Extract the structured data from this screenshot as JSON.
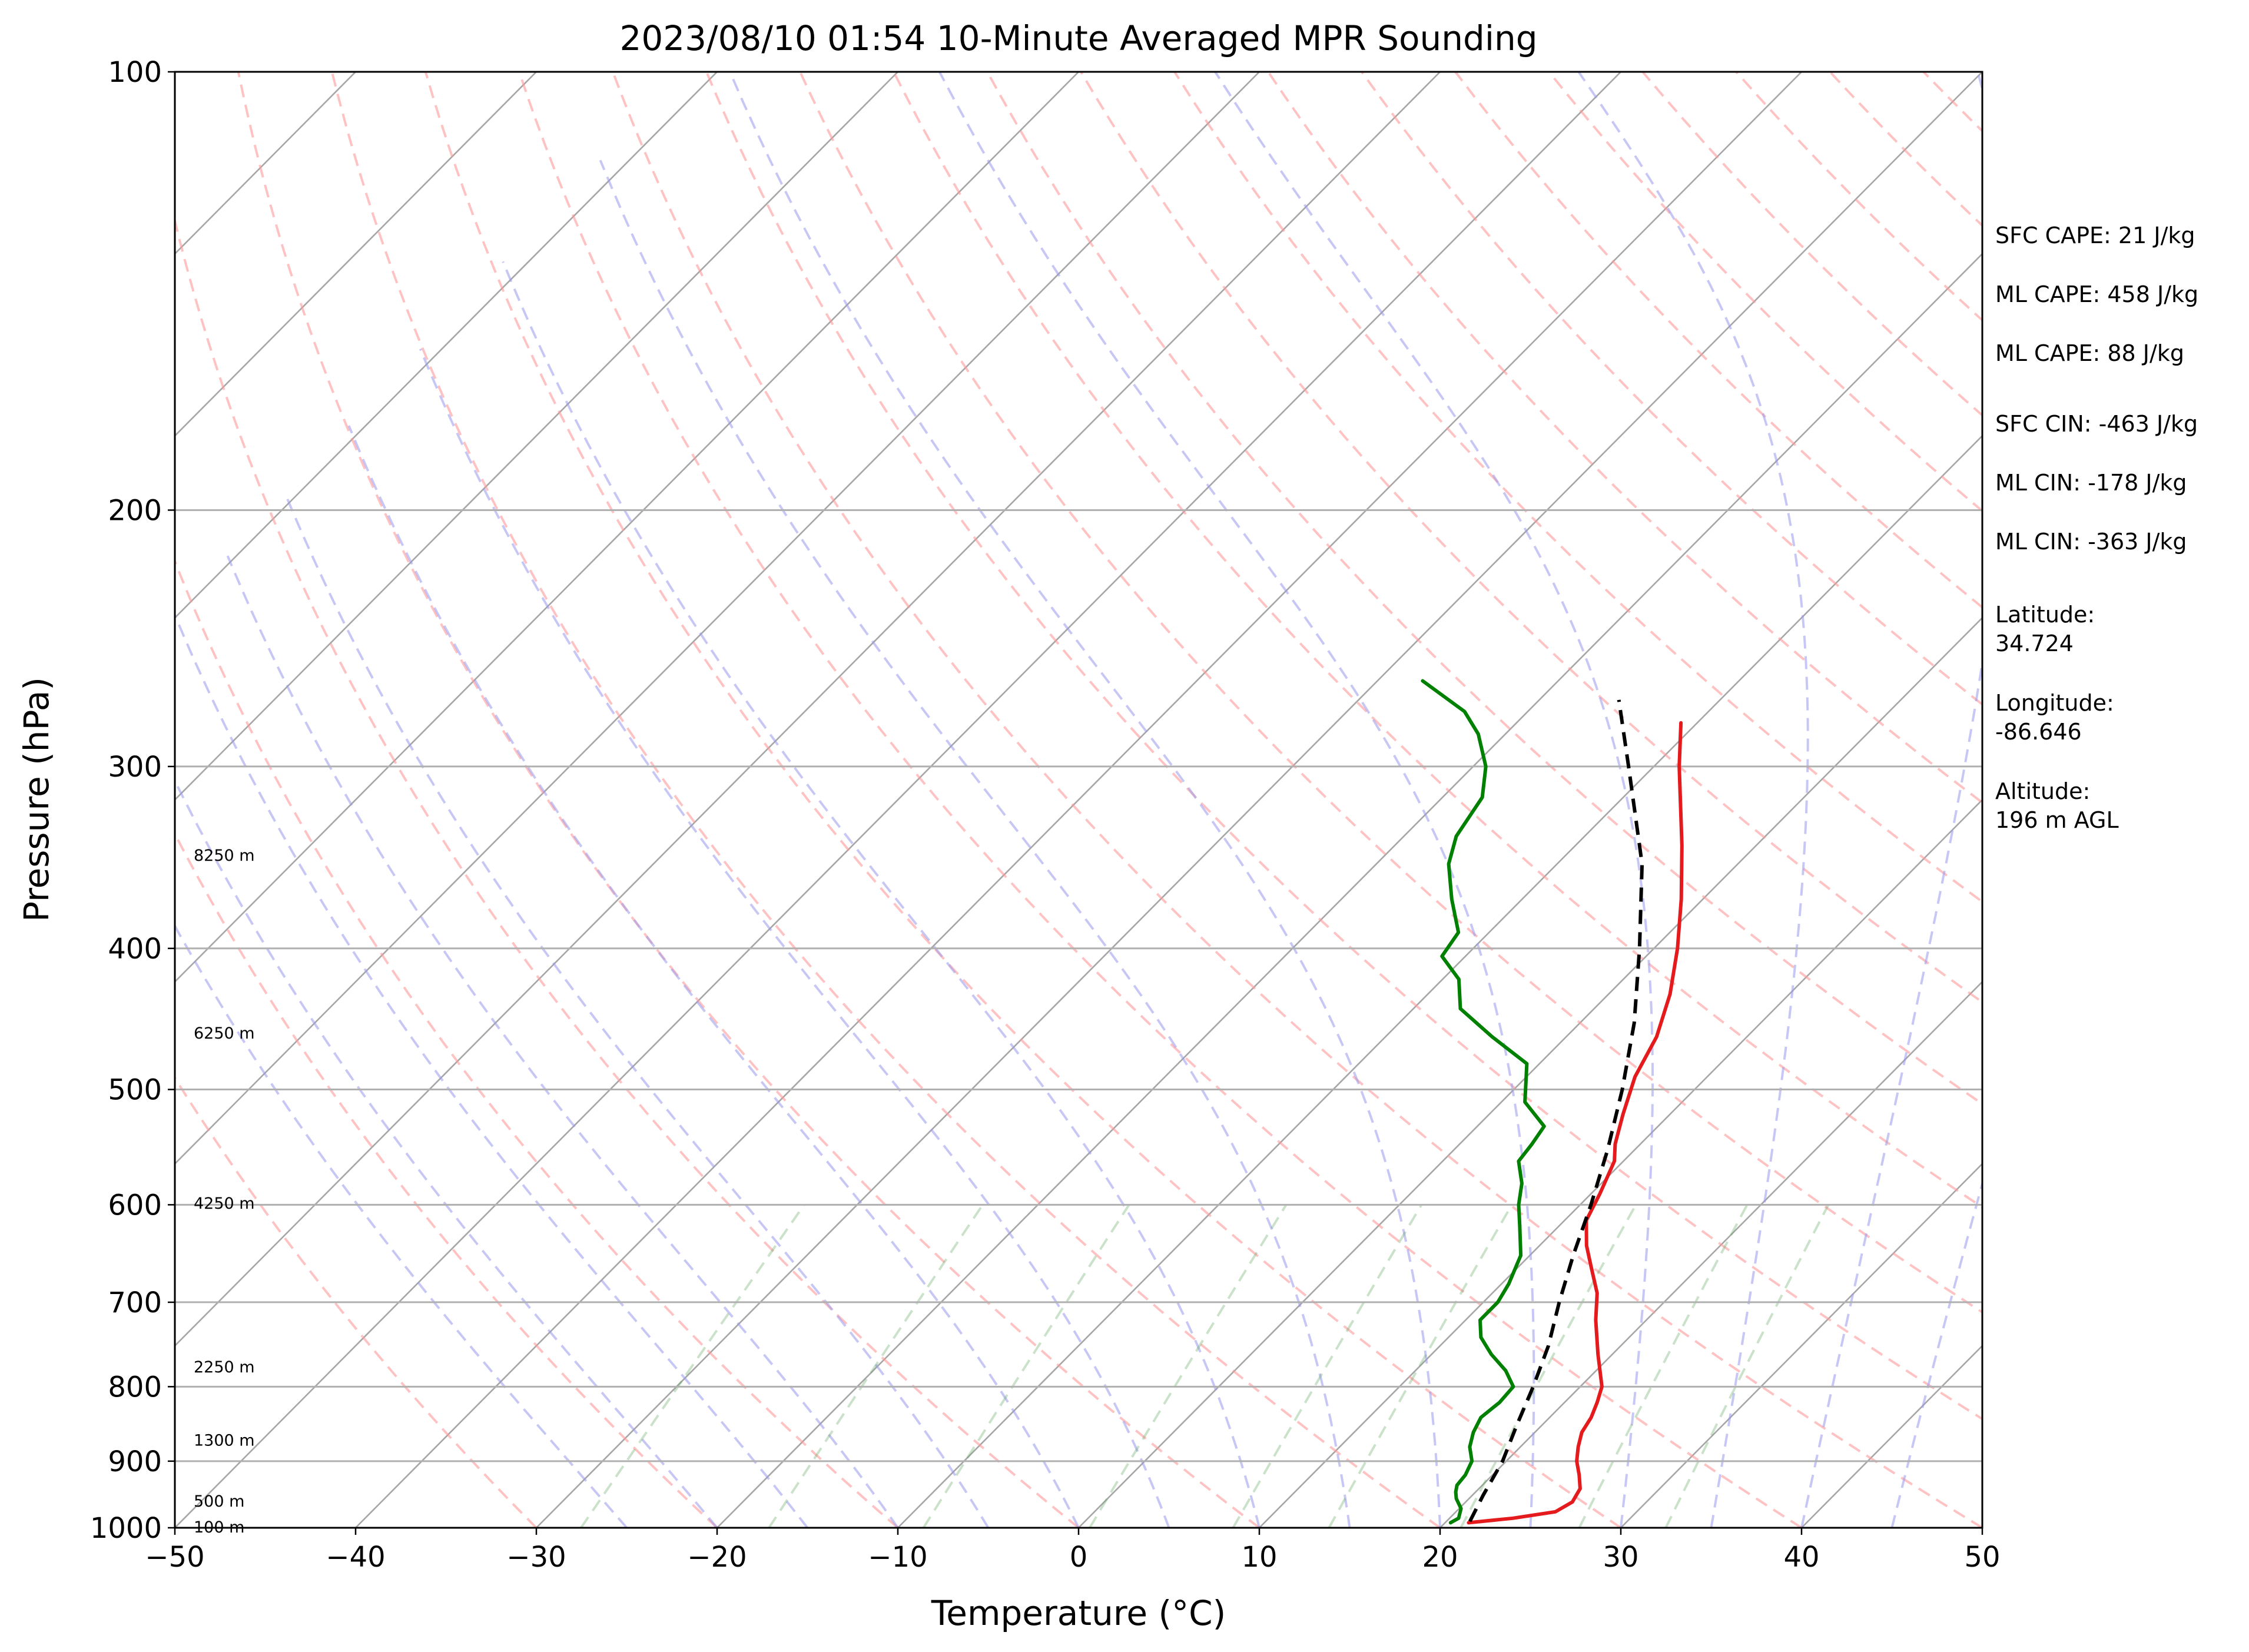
{
  "chart_data": {
    "type": "skew-t",
    "title": "2023/08/10 01:54 10-Minute Averaged MPR Sounding",
    "xlabel": "Temperature (°C)",
    "ylabel": "Pressure (hPa)",
    "xlim": [
      -50,
      50
    ],
    "ylim": [
      1000,
      100
    ],
    "y_scale": "log",
    "x_ticks": [
      "−50",
      "−40",
      "−30",
      "−20",
      "−10",
      "0",
      "10",
      "20",
      "30",
      "40",
      "50"
    ],
    "y_ticks": [
      {
        "p": 100,
        "label": "100"
      },
      {
        "p": 200,
        "label": "200"
      },
      {
        "p": 300,
        "label": "300"
      },
      {
        "p": 400,
        "label": "400"
      },
      {
        "p": 500,
        "label": "500"
      },
      {
        "p": 600,
        "label": "600"
      },
      {
        "p": 700,
        "label": "700"
      },
      {
        "p": 800,
        "label": "800"
      },
      {
        "p": 900,
        "label": "900"
      },
      {
        "p": 1000,
        "label": "1000"
      }
    ],
    "height_labels": [
      {
        "p": 345,
        "label": "8250 m"
      },
      {
        "p": 457,
        "label": "6250 m"
      },
      {
        "p": 598,
        "label": "4250 m"
      },
      {
        "p": 775,
        "label": "2250 m"
      },
      {
        "p": 870,
        "label": "1300 m"
      },
      {
        "p": 958,
        "label": "500 m"
      },
      {
        "p": 998,
        "label": "100 m"
      }
    ],
    "series": [
      {
        "color": "#e41a1c",
        "data": [
          [
            992,
            21.3
          ],
          [
            985,
            23.5
          ],
          [
            975,
            25.5
          ],
          [
            960,
            25.9
          ],
          [
            940,
            25.6
          ],
          [
            920,
            24.8
          ],
          [
            900,
            23.9
          ],
          [
            880,
            23.2
          ],
          [
            860,
            22.6
          ],
          [
            840,
            22.3
          ],
          [
            820,
            21.8
          ],
          [
            800,
            21.2
          ],
          [
            760,
            19.2
          ],
          [
            720,
            17.2
          ],
          [
            690,
            15.8
          ],
          [
            660,
            13.9
          ],
          [
            640,
            12.6
          ],
          [
            615,
            11.2
          ],
          [
            590,
            10.5
          ],
          [
            560,
            9.5
          ],
          [
            545,
            8.6
          ],
          [
            520,
            7.4
          ],
          [
            490,
            6.0
          ],
          [
            460,
            5.0
          ],
          [
            430,
            3.4
          ],
          [
            400,
            1.3
          ],
          [
            370,
            -1.2
          ],
          [
            340,
            -4.1
          ],
          [
            300,
            -8.6
          ],
          [
            280,
            -10.9
          ]
        ]
      },
      {
        "color": "#008000",
        "data": [
          [
            992,
            20.3
          ],
          [
            985,
            20.5
          ],
          [
            970,
            20.1
          ],
          [
            955,
            19.3
          ],
          [
            945,
            18.9
          ],
          [
            935,
            18.6
          ],
          [
            920,
            18.5
          ],
          [
            900,
            18.1
          ],
          [
            880,
            17.2
          ],
          [
            860,
            16.6
          ],
          [
            840,
            16.2
          ],
          [
            820,
            16.4
          ],
          [
            800,
            16.3
          ],
          [
            780,
            15.0
          ],
          [
            760,
            13.3
          ],
          [
            740,
            11.8
          ],
          [
            720,
            10.8
          ],
          [
            700,
            10.8
          ],
          [
            680,
            10.4
          ],
          [
            650,
            9.5
          ],
          [
            620,
            7.8
          ],
          [
            600,
            6.6
          ],
          [
            580,
            5.6
          ],
          [
            560,
            4.2
          ],
          [
            545,
            4.0
          ],
          [
            530,
            3.7
          ],
          [
            510,
            1.3
          ],
          [
            480,
            -0.7
          ],
          [
            460,
            -4.1
          ],
          [
            440,
            -7.4
          ],
          [
            420,
            -9.1
          ],
          [
            405,
            -11.3
          ],
          [
            390,
            -11.7
          ],
          [
            370,
            -13.9
          ],
          [
            350,
            -16.0
          ],
          [
            335,
            -17.1
          ],
          [
            315,
            -17.8
          ],
          [
            300,
            -19.3
          ],
          [
            285,
            -21.5
          ],
          [
            275,
            -23.5
          ],
          [
            262,
            -27.5
          ]
        ]
      },
      {
        "color": "#000000",
        "dashed": true,
        "data": [
          [
            990,
            21.3
          ],
          [
            950,
            20.6
          ],
          [
            900,
            19.8
          ],
          [
            850,
            18.6
          ],
          [
            800,
            17.4
          ],
          [
            750,
            16.0
          ],
          [
            700,
            14.2
          ],
          [
            650,
            12.4
          ],
          [
            600,
            10.6
          ],
          [
            550,
            8.5
          ],
          [
            500,
            6.0
          ],
          [
            450,
            3.0
          ],
          [
            400,
            -0.8
          ],
          [
            350,
            -5.3
          ],
          [
            300,
            -11.4
          ],
          [
            270,
            -15.6
          ]
        ]
      }
    ]
  },
  "info": [
    "SFC CAPE: 21 J/kg",
    "ML CAPE: 458 J/kg",
    "ML CAPE: 88 J/kg",
    "SFC CIN: -463 J/kg",
    "ML CIN: -178 J/kg",
    "ML CIN: -363 J/kg",
    "Latitude:",
    "34.724",
    "Longitude:",
    "-86.646",
    "Altitude:",
    "196 m AGL"
  ]
}
